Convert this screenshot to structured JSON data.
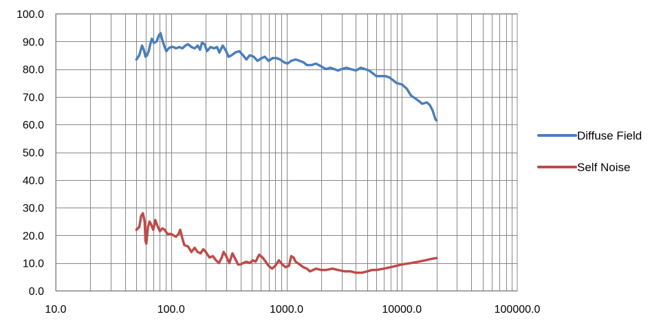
{
  "chart_data": {
    "type": "line",
    "title": "",
    "xlabel": "",
    "ylabel": "",
    "x_scale": "log",
    "xlim": [
      10,
      100000
    ],
    "ylim": [
      0,
      100
    ],
    "grid": true,
    "legend_position": "right",
    "x_tick_labels": [
      "10.0",
      "100.0",
      "1000.0",
      "10000.0",
      "100000.0"
    ],
    "y_tick_labels": [
      "0.0",
      "10.0",
      "20.0",
      "30.0",
      "40.0",
      "50.0",
      "60.0",
      "70.0",
      "80.0",
      "90.0",
      "100.0"
    ],
    "series": [
      {
        "name": "Diffuse Field",
        "color": "#4a7ebb",
        "points": [
          [
            50,
            83.5
          ],
          [
            53,
            85
          ],
          [
            56,
            88.5
          ],
          [
            58,
            87
          ],
          [
            60,
            84.5
          ],
          [
            62,
            85
          ],
          [
            64,
            86.5
          ],
          [
            66,
            89
          ],
          [
            68,
            91
          ],
          [
            71,
            89.5
          ],
          [
            75,
            90
          ],
          [
            78,
            92
          ],
          [
            81,
            93
          ],
          [
            84,
            90.5
          ],
          [
            88,
            88
          ],
          [
            91,
            86.5
          ],
          [
            95,
            87.5
          ],
          [
            100,
            88
          ],
          [
            105,
            88
          ],
          [
            110,
            87.5
          ],
          [
            118,
            88
          ],
          [
            125,
            87.5
          ],
          [
            133,
            88.5
          ],
          [
            140,
            89
          ],
          [
            150,
            88
          ],
          [
            160,
            87.5
          ],
          [
            170,
            88.5
          ],
          [
            178,
            87
          ],
          [
            185,
            89.5
          ],
          [
            195,
            89
          ],
          [
            205,
            86.5
          ],
          [
            220,
            88
          ],
          [
            235,
            87.5
          ],
          [
            250,
            88
          ],
          [
            262,
            86
          ],
          [
            280,
            88.5
          ],
          [
            300,
            86.5
          ],
          [
            315,
            84.5
          ],
          [
            335,
            85
          ],
          [
            360,
            86
          ],
          [
            390,
            86.5
          ],
          [
            420,
            85
          ],
          [
            450,
            83.5
          ],
          [
            480,
            85
          ],
          [
            520,
            84.5
          ],
          [
            560,
            83
          ],
          [
            610,
            84
          ],
          [
            650,
            84.5
          ],
          [
            700,
            83
          ],
          [
            760,
            84
          ],
          [
            820,
            84
          ],
          [
            880,
            83.5
          ],
          [
            950,
            82.5
          ],
          [
            1020,
            82
          ],
          [
            1100,
            83
          ],
          [
            1200,
            83.5
          ],
          [
            1300,
            83
          ],
          [
            1400,
            82.5
          ],
          [
            1500,
            81.5
          ],
          [
            1650,
            81.5
          ],
          [
            1800,
            82
          ],
          [
            2000,
            81
          ],
          [
            2200,
            80
          ],
          [
            2400,
            80.5
          ],
          [
            2600,
            80
          ],
          [
            2800,
            79.5
          ],
          [
            3000,
            80
          ],
          [
            3300,
            80.5
          ],
          [
            3600,
            80
          ],
          [
            4000,
            79.5
          ],
          [
            4400,
            80.5
          ],
          [
            4800,
            80
          ],
          [
            5200,
            79.5
          ],
          [
            5600,
            78.5
          ],
          [
            6000,
            77.5
          ],
          [
            6600,
            77.5
          ],
          [
            7200,
            77.5
          ],
          [
            7800,
            77
          ],
          [
            8400,
            76
          ],
          [
            9000,
            75
          ],
          [
            10000,
            74.5
          ],
          [
            11000,
            73
          ],
          [
            12000,
            70.5
          ],
          [
            13000,
            69.5
          ],
          [
            14000,
            68.5
          ],
          [
            15000,
            67.5
          ],
          [
            16500,
            68
          ],
          [
            17500,
            67
          ],
          [
            18500,
            65
          ],
          [
            19500,
            62
          ],
          [
            20000,
            61.5
          ]
        ]
      },
      {
        "name": "Self Noise",
        "color": "#be4b48",
        "points": [
          [
            50,
            22
          ],
          [
            53,
            23
          ],
          [
            55,
            27
          ],
          [
            57,
            28
          ],
          [
            59,
            25
          ],
          [
            60,
            18
          ],
          [
            61,
            17
          ],
          [
            63,
            23
          ],
          [
            65,
            25
          ],
          [
            67,
            24
          ],
          [
            70,
            22
          ],
          [
            73,
            25.5
          ],
          [
            76,
            23.5
          ],
          [
            80,
            21.5
          ],
          [
            84,
            22.5
          ],
          [
            88,
            22
          ],
          [
            93,
            20.5
          ],
          [
            100,
            20.5
          ],
          [
            105,
            20
          ],
          [
            110,
            19.5
          ],
          [
            116,
            20.5
          ],
          [
            120,
            22
          ],
          [
            125,
            19
          ],
          [
            130,
            16.5
          ],
          [
            140,
            16
          ],
          [
            150,
            14
          ],
          [
            160,
            15.5
          ],
          [
            170,
            14
          ],
          [
            180,
            13.5
          ],
          [
            190,
            15
          ],
          [
            200,
            14
          ],
          [
            215,
            12
          ],
          [
            230,
            12.5
          ],
          [
            245,
            11
          ],
          [
            260,
            10
          ],
          [
            275,
            12
          ],
          [
            285,
            14
          ],
          [
            300,
            12.5
          ],
          [
            320,
            10
          ],
          [
            340,
            13.5
          ],
          [
            360,
            11.5
          ],
          [
            380,
            9.5
          ],
          [
            400,
            9.5
          ],
          [
            420,
            10
          ],
          [
            450,
            10.5
          ],
          [
            480,
            10
          ],
          [
            510,
            11
          ],
          [
            540,
            10.5
          ],
          [
            580,
            13
          ],
          [
            620,
            12
          ],
          [
            660,
            10.5
          ],
          [
            700,
            9
          ],
          [
            750,
            8
          ],
          [
            800,
            9
          ],
          [
            860,
            11
          ],
          [
            920,
            9.5
          ],
          [
            980,
            8.5
          ],
          [
            1050,
            9
          ],
          [
            1100,
            12.5
          ],
          [
            1150,
            12
          ],
          [
            1200,
            10.5
          ],
          [
            1300,
            9.5
          ],
          [
            1400,
            8.5
          ],
          [
            1500,
            8
          ],
          [
            1600,
            7
          ],
          [
            1700,
            7.5
          ],
          [
            1800,
            8
          ],
          [
            2000,
            7.5
          ],
          [
            2200,
            7.5
          ],
          [
            2500,
            8
          ],
          [
            2800,
            7.5
          ],
          [
            3200,
            7
          ],
          [
            3600,
            7
          ],
          [
            4000,
            6.5
          ],
          [
            4500,
            6.5
          ],
          [
            5000,
            7
          ],
          [
            5500,
            7.5
          ],
          [
            6000,
            7.5
          ],
          [
            7000,
            8
          ],
          [
            8000,
            8.5
          ],
          [
            9000,
            9
          ],
          [
            10000,
            9.5
          ],
          [
            12000,
            10
          ],
          [
            14000,
            10.5
          ],
          [
            16000,
            11
          ],
          [
            18000,
            11.5
          ],
          [
            20000,
            11.8
          ]
        ]
      }
    ]
  }
}
